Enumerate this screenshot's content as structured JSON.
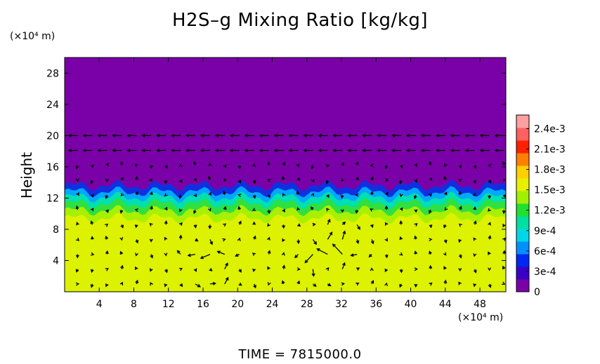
{
  "chart_data": {
    "type": "heatmap",
    "title": "H2S–g Mixing Ratio [kg/kg]",
    "ylabel": "Height",
    "x_unit": "(×10⁴ m)",
    "y_unit": "(×10⁴ m)",
    "footer": "TIME = 7815000.0",
    "xlim": [
      0,
      51
    ],
    "ylim": [
      0,
      30
    ],
    "x_ticks": [
      4,
      8,
      12,
      16,
      20,
      24,
      28,
      32,
      36,
      40,
      44,
      48
    ],
    "y_ticks": [
      4,
      8,
      12,
      16,
      20,
      24,
      28
    ],
    "colorbar": {
      "ticks": [
        "0",
        "3e-4",
        "6e-4",
        "9e-4",
        "1.2e-3",
        "1.5e-3",
        "1.8e-3",
        "2.1e-3",
        "2.4e-3"
      ],
      "tick_values": [
        0,
        0.0003,
        0.0006,
        0.0009,
        0.0012,
        0.0015,
        0.0018,
        0.0021,
        0.0024
      ],
      "max": 0.0026,
      "colors": [
        "#7a00a8",
        "#3a00c8",
        "#0028f0",
        "#0090ff",
        "#00d8e8",
        "#00e0a0",
        "#20e030",
        "#a0f000",
        "#e8f000",
        "#ffd000",
        "#ff8000",
        "#ff2000",
        "#ff6060",
        "#ffa0a0"
      ]
    },
    "colors": {
      "upper_layer": "#7a00a8",
      "lower_layer": "#dcf200",
      "arrows": "#000000"
    }
  }
}
